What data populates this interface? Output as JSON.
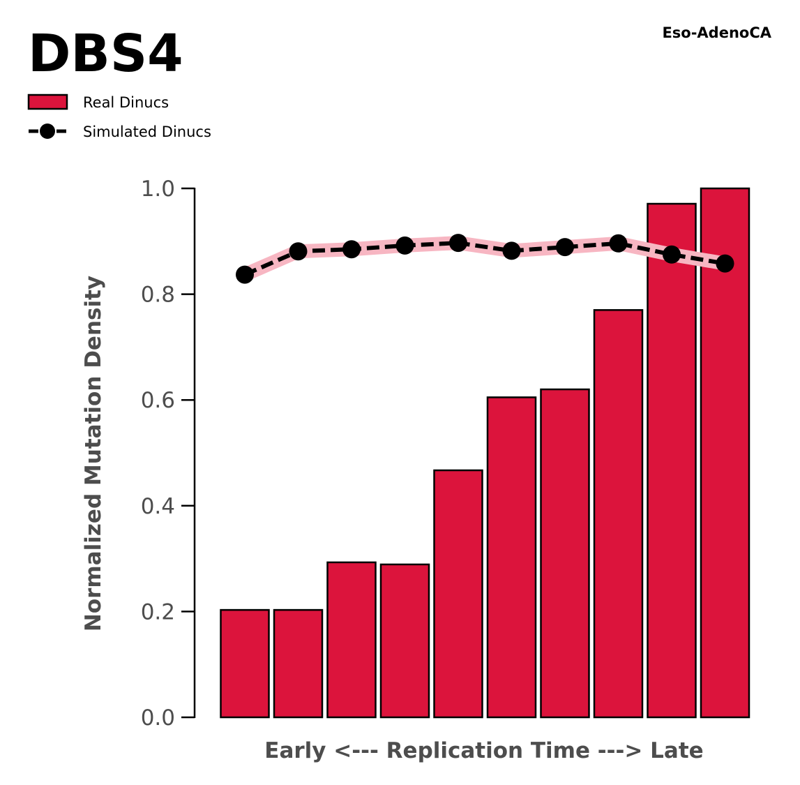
{
  "chart_data": {
    "type": "bar",
    "title": "DBS4",
    "subtitle": "Eso-AdenoCA",
    "xlabel": "Early <--- Replication Time ---> Late",
    "ylabel": "Normalized Mutation Density",
    "ylim": [
      0,
      1
    ],
    "yticks": [
      "0.0",
      "0.2",
      "0.4",
      "0.6",
      "0.8",
      "1.0"
    ],
    "grid": false,
    "legend_position": "top-left",
    "colors": {
      "bar_fill": "#dc143c",
      "bar_edge": "#000000",
      "line": "#000000",
      "band": "#f7b6c2"
    },
    "series": [
      {
        "name": "Real Dinucs",
        "kind": "bar",
        "values": [
          0.203,
          0.203,
          0.293,
          0.289,
          0.467,
          0.605,
          0.62,
          0.77,
          0.971,
          1.0
        ]
      },
      {
        "name": "Simulated Dinucs",
        "kind": "line",
        "values": [
          0.837,
          0.881,
          0.885,
          0.892,
          0.897,
          0.882,
          0.889,
          0.896,
          0.875,
          0.858
        ]
      }
    ]
  }
}
